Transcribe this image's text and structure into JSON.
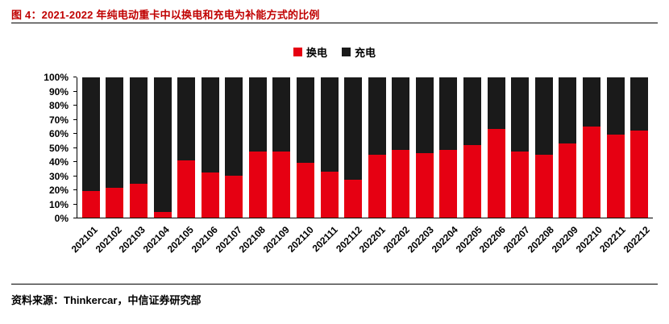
{
  "header": {
    "title": "图 4：2021-2022 年纯电动重卡中以换电和充电为补能方式的比例"
  },
  "footer": {
    "source": "资料来源：Thinkercar，中信证券研究部"
  },
  "colors": {
    "title_red": "#c00000",
    "swap_red": "#e60012",
    "charge_black": "#1a1a1a",
    "axis": "#000000"
  },
  "chart_data": {
    "type": "bar",
    "stacked": true,
    "stack_total": 100,
    "title": "图 4：2021-2022 年纯电动重卡中以换电和充电为补能方式的比例",
    "xlabel": "",
    "ylabel": "",
    "ylim": [
      0,
      100
    ],
    "grid": false,
    "legend_position": "top",
    "yticks": [
      "0%",
      "10%",
      "20%",
      "30%",
      "40%",
      "50%",
      "60%",
      "70%",
      "80%",
      "90%",
      "100%"
    ],
    "categories": [
      "202101",
      "202102",
      "202103",
      "202104",
      "202105",
      "202106",
      "202107",
      "202108",
      "202109",
      "202110",
      "202111",
      "202112",
      "202201",
      "202202",
      "202203",
      "202204",
      "202205",
      "202206",
      "202207",
      "202208",
      "202209",
      "202210",
      "202211",
      "202212"
    ],
    "series": [
      {
        "name": "换电",
        "color": "#e60012",
        "values": [
          19,
          21,
          24,
          4,
          41,
          32,
          30,
          47,
          47,
          39,
          33,
          27,
          45,
          48,
          46,
          48,
          52,
          63,
          47,
          45,
          53,
          65,
          59,
          62
        ]
      },
      {
        "name": "充电",
        "color": "#1a1a1a",
        "values": [
          81,
          79,
          76,
          96,
          59,
          68,
          70,
          53,
          53,
          61,
          67,
          73,
          55,
          52,
          54,
          52,
          48,
          37,
          53,
          55,
          47,
          35,
          41,
          38
        ]
      }
    ]
  }
}
